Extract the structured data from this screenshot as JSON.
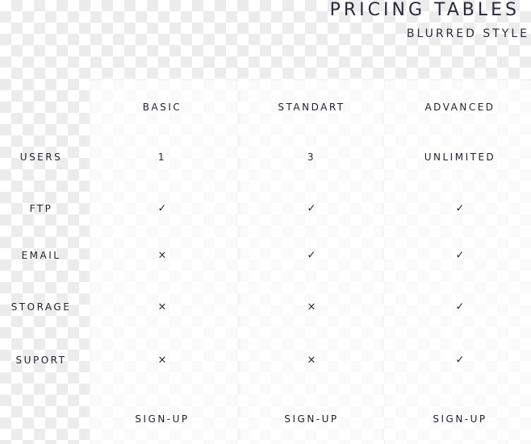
{
  "header": {
    "title": "PRICING TABLES",
    "subtitle": "BLURRED STYLE"
  },
  "plans": [
    {
      "name": "BASIC",
      "signup": "SIGN-UP"
    },
    {
      "name": "STANDART",
      "signup": "SIGN-UP"
    },
    {
      "name": "ADVANCED",
      "signup": "SIGN-UP"
    }
  ],
  "features": [
    {
      "label": "USERS",
      "values": [
        "1",
        "3",
        "UNLIMITED"
      ]
    },
    {
      "label": "FTP",
      "values": [
        "check",
        "check",
        "check"
      ]
    },
    {
      "label": "EMAIL",
      "values": [
        "cross",
        "check",
        "check"
      ]
    },
    {
      "label": "STORAGE",
      "values": [
        "cross",
        "cross",
        "check"
      ]
    },
    {
      "label": "SUPORT",
      "values": [
        "cross",
        "cross",
        "check"
      ]
    }
  ],
  "icons": {
    "check": "✓",
    "cross": "×"
  }
}
